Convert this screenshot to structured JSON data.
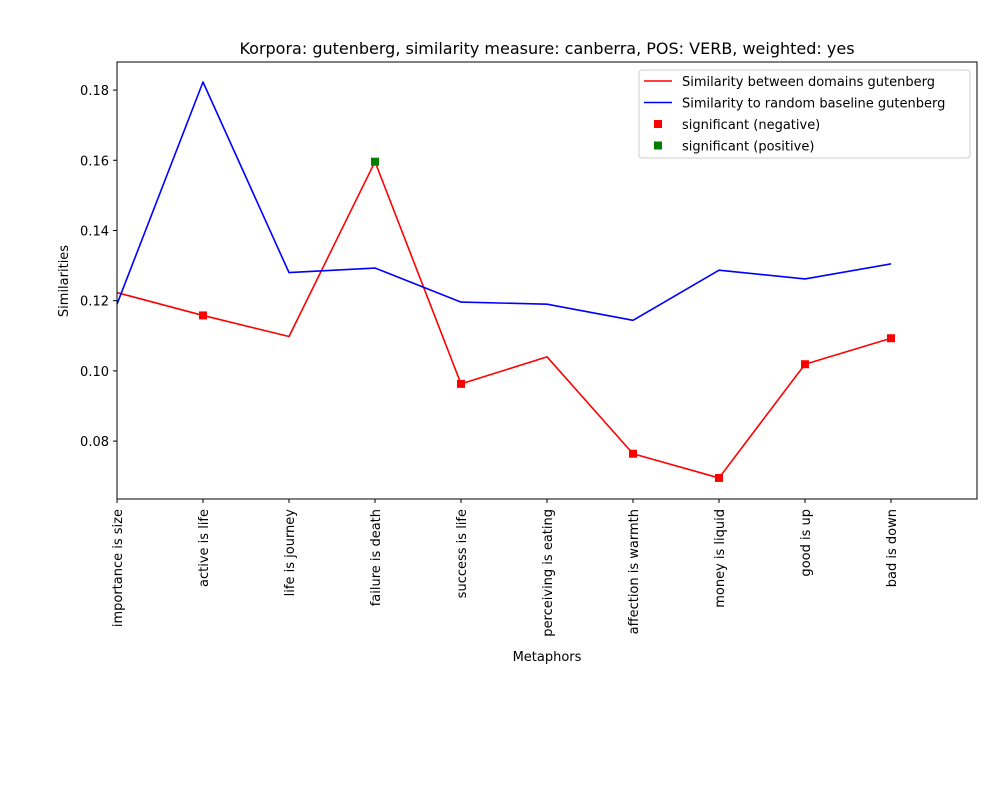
{
  "chart_data": {
    "type": "line",
    "title": "Korpora: gutenberg, similarity measure: canberra, POS: VERB, weighted: yes",
    "xlabel": "Metaphors",
    "ylabel": "Similarities",
    "categories": [
      "importance is size",
      "active is life",
      "life is journey",
      "failure is death",
      "success is life",
      "perceiving is eating",
      "affection is warmth",
      "money is liquid",
      "good is up",
      "bad is down"
    ],
    "ylim": [
      0.0635,
      0.188
    ],
    "yticks": [
      "0.08",
      "0.10",
      "0.12",
      "0.14",
      "0.16",
      "0.18"
    ],
    "grid": false,
    "legend_position": "top-right",
    "series": [
      {
        "name": "Similarity between domains gutenberg",
        "color": "#ff0000",
        "values": [
          0.1223,
          0.1158,
          0.1098,
          0.1596,
          0.0963,
          0.104,
          0.0764,
          0.0695,
          0.1019,
          0.1093
        ]
      },
      {
        "name": "Similarity to random baseline gutenberg",
        "color": "#0000ff",
        "values": [
          0.119,
          0.1823,
          0.128,
          0.1293,
          0.1196,
          0.119,
          0.1144,
          0.1287,
          0.1262,
          0.1305
        ]
      }
    ],
    "markers": [
      {
        "name": "significant (negative)",
        "color": "#ff0000",
        "series": 0,
        "indices": [
          1,
          4,
          6,
          7,
          8,
          9
        ]
      },
      {
        "name": "significant (positive)",
        "color": "#008000",
        "series": 0,
        "indices": [
          3
        ]
      }
    ]
  }
}
